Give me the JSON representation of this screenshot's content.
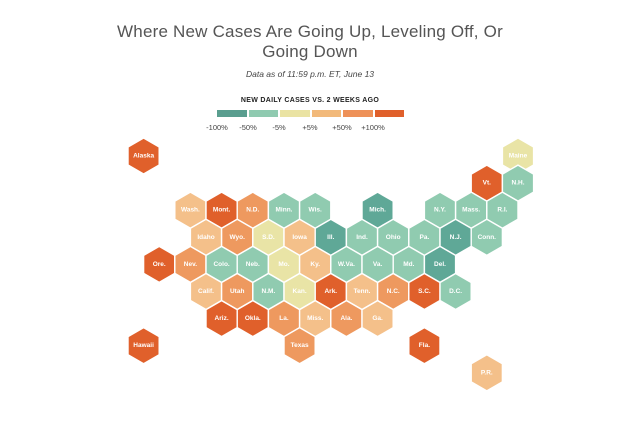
{
  "title_line1": "Where New Cases Are Going Up, Leveling Off, Or",
  "title_line2": "Going Down",
  "subtitle": "Data as of 11:59 p.m. ET, June 13",
  "legend": {
    "title": "NEW DAILY CASES VS. 2 WEEKS AGO",
    "colors": [
      "#5a9e8f",
      "#8fcab0",
      "#eae3a3",
      "#f2b97a",
      "#ee9158",
      "#e0602b"
    ],
    "ticks": [
      "-100%",
      "-50%",
      "-5%",
      "+5%",
      "+50%",
      "+100%"
    ]
  },
  "colors": {
    "c1": "#5fa897",
    "c2": "#90cbb0",
    "c3": "#e9e4a6",
    "c4": "#f4c08a",
    "c5": "#ee995f",
    "c6": "#e0602b"
  },
  "states": [
    {
      "label": "Alaska",
      "row": 0,
      "col": 0.5,
      "cat": "c6"
    },
    {
      "label": "Maine",
      "row": 0,
      "col": 12.5,
      "cat": "c3"
    },
    {
      "label": "Vt.",
      "row": 1,
      "col": 11,
      "cat": "c6"
    },
    {
      "label": "N.H.",
      "row": 1,
      "col": 12,
      "cat": "c2"
    },
    {
      "label": "Wash.",
      "row": 2,
      "col": 2,
      "cat": "c4"
    },
    {
      "label": "Mont.",
      "row": 2,
      "col": 3,
      "cat": "c6"
    },
    {
      "label": "N.D.",
      "row": 2,
      "col": 4,
      "cat": "c5"
    },
    {
      "label": "Minn.",
      "row": 2,
      "col": 5,
      "cat": "c2"
    },
    {
      "label": "Wis.",
      "row": 2,
      "col": 6,
      "cat": "c2"
    },
    {
      "label": "Mich.",
      "row": 2,
      "col": 8,
      "cat": "c1"
    },
    {
      "label": "N.Y.",
      "row": 2,
      "col": 10,
      "cat": "c2"
    },
    {
      "label": "Mass.",
      "row": 2,
      "col": 11,
      "cat": "c2"
    },
    {
      "label": "R.I.",
      "row": 2,
      "col": 12,
      "cat": "c2"
    },
    {
      "label": "Idaho",
      "row": 3,
      "col": 2,
      "cat": "c4"
    },
    {
      "label": "Wyo.",
      "row": 3,
      "col": 3,
      "cat": "c5"
    },
    {
      "label": "S.D.",
      "row": 3,
      "col": 4,
      "cat": "c3"
    },
    {
      "label": "Iowa",
      "row": 3,
      "col": 5,
      "cat": "c4"
    },
    {
      "label": "Ill.",
      "row": 3,
      "col": 6,
      "cat": "c1"
    },
    {
      "label": "Ind.",
      "row": 3,
      "col": 7,
      "cat": "c2"
    },
    {
      "label": "Ohio",
      "row": 3,
      "col": 8,
      "cat": "c2"
    },
    {
      "label": "Pa.",
      "row": 3,
      "col": 9,
      "cat": "c2"
    },
    {
      "label": "N.J.",
      "row": 3,
      "col": 10,
      "cat": "c1"
    },
    {
      "label": "Conn.",
      "row": 3,
      "col": 11,
      "cat": "c2"
    },
    {
      "label": "Ore.",
      "row": 4,
      "col": 1,
      "cat": "c6"
    },
    {
      "label": "Nev.",
      "row": 4,
      "col": 2,
      "cat": "c5"
    },
    {
      "label": "Colo.",
      "row": 4,
      "col": 3,
      "cat": "c2"
    },
    {
      "label": "Neb.",
      "row": 4,
      "col": 4,
      "cat": "c2"
    },
    {
      "label": "Mo.",
      "row": 4,
      "col": 5,
      "cat": "c3"
    },
    {
      "label": "Ky.",
      "row": 4,
      "col": 6,
      "cat": "c4"
    },
    {
      "label": "W.Va.",
      "row": 4,
      "col": 7,
      "cat": "c2"
    },
    {
      "label": "Va.",
      "row": 4,
      "col": 8,
      "cat": "c2"
    },
    {
      "label": "Md.",
      "row": 4,
      "col": 9,
      "cat": "c2"
    },
    {
      "label": "Del.",
      "row": 4,
      "col": 10,
      "cat": "c1"
    },
    {
      "label": "Calif.",
      "row": 5,
      "col": 2,
      "cat": "c4"
    },
    {
      "label": "Utah",
      "row": 5,
      "col": 3,
      "cat": "c5"
    },
    {
      "label": "N.M.",
      "row": 5,
      "col": 4,
      "cat": "c2"
    },
    {
      "label": "Kan.",
      "row": 5,
      "col": 5,
      "cat": "c3"
    },
    {
      "label": "Ark.",
      "row": 5,
      "col": 6,
      "cat": "c6"
    },
    {
      "label": "Tenn.",
      "row": 5,
      "col": 7,
      "cat": "c4"
    },
    {
      "label": "N.C.",
      "row": 5,
      "col": 8,
      "cat": "c5"
    },
    {
      "label": "S.C.",
      "row": 5,
      "col": 9,
      "cat": "c6"
    },
    {
      "label": "D.C.",
      "row": 5,
      "col": 10,
      "cat": "c2"
    },
    {
      "label": "Ariz.",
      "row": 6,
      "col": 3,
      "cat": "c6"
    },
    {
      "label": "Okla.",
      "row": 6,
      "col": 4,
      "cat": "c6"
    },
    {
      "label": "La.",
      "row": 6,
      "col": 5,
      "cat": "c5"
    },
    {
      "label": "Miss.",
      "row": 6,
      "col": 6,
      "cat": "c4"
    },
    {
      "label": "Ala.",
      "row": 6,
      "col": 7,
      "cat": "c5"
    },
    {
      "label": "Ga.",
      "row": 6,
      "col": 8,
      "cat": "c4"
    },
    {
      "label": "Hawaii",
      "row": 7,
      "col": 0,
      "cat": "c6"
    },
    {
      "label": "Texas",
      "row": 7,
      "col": 5,
      "cat": "c5"
    },
    {
      "label": "Fla.",
      "row": 7,
      "col": 9,
      "cat": "c6"
    },
    {
      "label": "P.R.",
      "row": 8,
      "col": 11.5,
      "cat": "c4"
    }
  ]
}
